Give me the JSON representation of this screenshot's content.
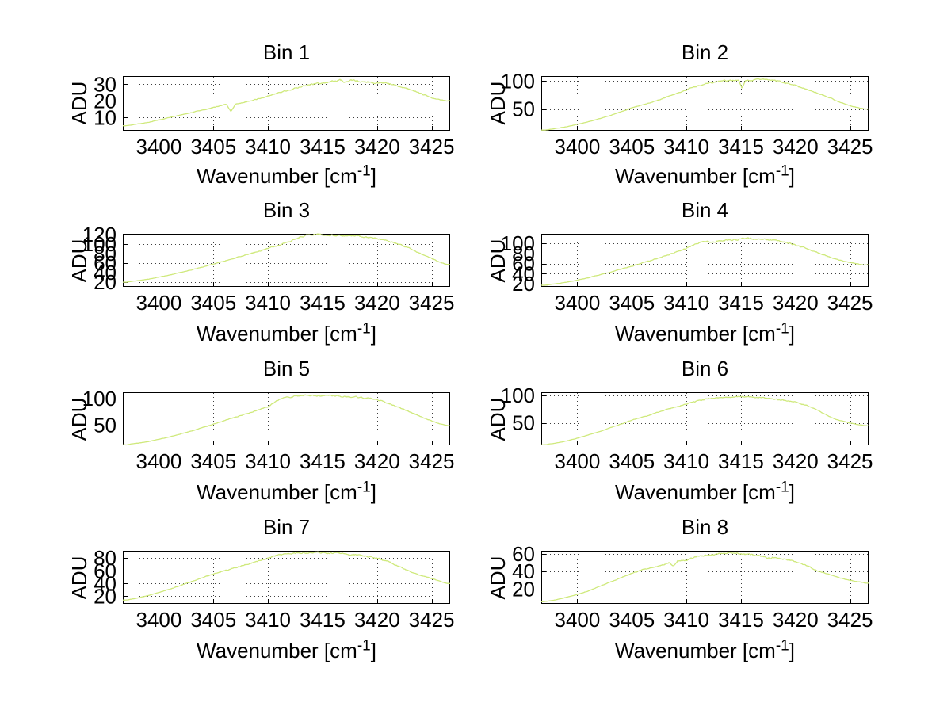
{
  "figure": {
    "background": "#ffffff",
    "line_color": "#cfe97c",
    "axis_color": "#000000",
    "grid_color": "#2a2a2a",
    "ylabel": "ADU",
    "xlabel": {
      "text": "Wavenumber [cm",
      "sup": "-1",
      "close": "]"
    },
    "xticks": [
      3400,
      3405,
      3410,
      3415,
      3420,
      3425
    ],
    "xlim": [
      3396.7,
      3426.7
    ]
  },
  "chart_data": [
    {
      "type": "line",
      "title": "Bin 1",
      "xlabel": "Wavenumber [cm^-1]",
      "ylabel": "ADU",
      "ylim": [
        2,
        35
      ],
      "yticks": [
        10,
        20,
        30
      ],
      "noise": 0.45,
      "seed": 1,
      "x": [
        3397,
        3399,
        3401,
        3403,
        3405,
        3406.2,
        3406.6,
        3407,
        3408,
        3409,
        3410,
        3411,
        3412,
        3413,
        3414,
        3415,
        3416,
        3416.6,
        3417,
        3417.4,
        3418,
        3419,
        3420,
        3421,
        3422,
        3423,
        3424,
        3425,
        3426,
        3426.5
      ],
      "y": [
        5,
        7,
        10,
        13,
        16,
        18,
        13.5,
        18,
        19.5,
        21,
        23,
        25,
        26.5,
        28.5,
        30,
        31,
        32,
        33,
        31.5,
        32.5,
        32,
        31.5,
        31,
        30.5,
        29,
        27,
        24.5,
        22,
        20.5,
        20
      ]
    },
    {
      "type": "line",
      "title": "Bin 2",
      "xlabel": "Wavenumber [cm^-1]",
      "ylabel": "ADU",
      "ylim": [
        11,
        109
      ],
      "yticks": [
        50,
        100
      ],
      "noise": 1.1,
      "seed": 2,
      "x": [
        3397,
        3399,
        3401,
        3403,
        3405,
        3407,
        3409,
        3410,
        3411,
        3412,
        3413,
        3414,
        3414.8,
        3415.1,
        3415.4,
        3416,
        3417,
        3418,
        3419,
        3420,
        3421,
        3422,
        3423,
        3424,
        3425,
        3426,
        3426.5
      ],
      "y": [
        12,
        18,
        27,
        38,
        52,
        63,
        77,
        84,
        91,
        96,
        100,
        101,
        102,
        87,
        101,
        102,
        103,
        101,
        97,
        92,
        86,
        79,
        71,
        63,
        56,
        51,
        50
      ]
    },
    {
      "type": "line",
      "title": "Bin 3",
      "xlabel": "Wavenumber [cm^-1]",
      "ylabel": "ADU",
      "ylim": [
        10,
        122
      ],
      "yticks": [
        20,
        40,
        60,
        80,
        100,
        120
      ],
      "noise": 1.2,
      "seed": 3,
      "x": [
        3397,
        3399,
        3401,
        3403,
        3405,
        3407,
        3409,
        3410,
        3411,
        3412,
        3413,
        3413.5,
        3414,
        3414.5,
        3415,
        3415.5,
        3416,
        3417,
        3418,
        3419,
        3420,
        3421,
        3422,
        3423,
        3424,
        3425,
        3426,
        3426.5
      ],
      "y": [
        20,
        26,
        35,
        46,
        58,
        71,
        84,
        91,
        98,
        106,
        116,
        118,
        120,
        121,
        120,
        118,
        119,
        118,
        117,
        115,
        112,
        107,
        100,
        91,
        80,
        70,
        60,
        57
      ]
    },
    {
      "type": "line",
      "title": "Bin 4",
      "xlabel": "Wavenumber [cm^-1]",
      "ylabel": "ADU",
      "ylim": [
        14,
        119
      ],
      "yticks": [
        20,
        40,
        60,
        80,
        100
      ],
      "noise": 1.4,
      "seed": 4,
      "x": [
        3397,
        3399,
        3401,
        3403,
        3405,
        3407,
        3408,
        3409,
        3410,
        3410.6,
        3411,
        3411.5,
        3412,
        3412.5,
        3413,
        3414,
        3415,
        3415.5,
        3416,
        3417,
        3417.5,
        3418,
        3418.5,
        3419,
        3419.5,
        3420,
        3421,
        3422,
        3423,
        3424,
        3425,
        3426,
        3426.5
      ],
      "y": [
        17,
        23,
        32,
        43,
        55,
        68,
        75,
        82,
        90,
        97,
        101,
        103,
        104,
        102,
        105,
        107,
        108,
        110,
        109,
        108,
        106,
        107,
        104,
        103,
        100,
        97,
        90,
        82,
        74,
        67,
        62,
        58,
        57
      ]
    },
    {
      "type": "line",
      "title": "Bin 5",
      "xlabel": "Wavenumber [cm^-1]",
      "ylabel": "ADU",
      "ylim": [
        12,
        112
      ],
      "yticks": [
        50,
        100
      ],
      "noise": 1.1,
      "seed": 5,
      "x": [
        3397,
        3399,
        3401,
        3403,
        3405,
        3407,
        3408,
        3409,
        3410,
        3410.5,
        3411,
        3411.5,
        3412,
        3413,
        3413.5,
        3414,
        3415,
        3415.5,
        3416,
        3417,
        3418,
        3419,
        3420,
        3420.5,
        3421,
        3422,
        3423,
        3424,
        3425,
        3426,
        3426.5
      ],
      "y": [
        13,
        19,
        28,
        39,
        52,
        65,
        71,
        78,
        85,
        92,
        98,
        101,
        103,
        105,
        107,
        106,
        105,
        107,
        105,
        104,
        103,
        101,
        98,
        95,
        91,
        84,
        75,
        66,
        58,
        51,
        49
      ]
    },
    {
      "type": "line",
      "title": "Bin 6",
      "xlabel": "Wavenumber [cm^-1]",
      "ylabel": "ADU",
      "ylim": [
        9,
        106
      ],
      "yticks": [
        50,
        100
      ],
      "noise": 0.9,
      "seed": 6,
      "x": [
        3397,
        3398,
        3399,
        3400,
        3401,
        3402,
        3403,
        3404,
        3405,
        3406,
        3406.5,
        3407,
        3408,
        3409,
        3410,
        3411,
        3412,
        3413,
        3414,
        3415,
        3416,
        3417,
        3418,
        3418.5,
        3419,
        3420,
        3420.5,
        3421,
        3421.5,
        3422,
        3422.5,
        3423,
        3423.5,
        3424,
        3425,
        3426,
        3426.5
      ],
      "y": [
        10,
        13,
        17,
        22,
        28,
        34,
        41,
        48,
        55,
        61,
        63,
        67,
        73,
        79,
        85,
        90,
        94,
        96,
        97,
        98,
        97,
        96,
        94,
        92,
        91,
        88,
        85,
        82,
        78,
        73,
        68,
        63,
        58,
        55,
        50,
        46,
        45
      ]
    },
    {
      "type": "line",
      "title": "Bin 7",
      "xlabel": "Wavenumber [cm^-1]",
      "ylabel": "ADU",
      "ylim": [
        8,
        91.5
      ],
      "yticks": [
        20,
        40,
        60,
        80
      ],
      "noise": 1.0,
      "seed": 7,
      "x": [
        3397,
        3398,
        3399,
        3399.6,
        3400,
        3401,
        3402,
        3403,
        3404,
        3405,
        3406,
        3407,
        3407.5,
        3408,
        3409,
        3410,
        3410.5,
        3411,
        3412,
        3413,
        3414,
        3414.5,
        3415,
        3416,
        3417,
        3418,
        3419,
        3420,
        3421,
        3421.5,
        3422,
        3422.5,
        3423,
        3424,
        3425,
        3426,
        3426.5
      ],
      "y": [
        14,
        17,
        21,
        24,
        26,
        31,
        37,
        43,
        49,
        55,
        60,
        65,
        67,
        70,
        75,
        80,
        83,
        85,
        87,
        88,
        89,
        90,
        89,
        88,
        87,
        85,
        83,
        80,
        75,
        71,
        67,
        63,
        59,
        53,
        48,
        42,
        40
      ]
    },
    {
      "type": "line",
      "title": "Bin 8",
      "xlabel": "Wavenumber [cm^-1]",
      "ylabel": "ADU",
      "ylim": [
        3.5,
        63.5
      ],
      "yticks": [
        20,
        40,
        60
      ],
      "noise": 0.7,
      "seed": 8,
      "x": [
        3397,
        3398,
        3399,
        3400,
        3401,
        3402,
        3403,
        3404,
        3405,
        3405.5,
        3406,
        3407,
        3408,
        3408.4,
        3408.8,
        3409.2,
        3410,
        3410.5,
        3411,
        3412,
        3413,
        3414,
        3415,
        3416,
        3417,
        3417.5,
        3418,
        3419,
        3420,
        3421,
        3421.5,
        3422,
        3423,
        3424,
        3425,
        3426,
        3426.5
      ],
      "y": [
        6,
        8,
        11,
        14,
        18,
        23,
        28,
        33,
        38,
        40,
        42,
        45,
        48,
        50,
        46,
        52,
        53,
        55,
        57,
        59,
        60,
        61,
        60,
        59,
        57,
        55,
        56,
        54,
        51,
        47,
        44,
        41,
        37,
        33,
        30,
        28,
        27
      ]
    }
  ]
}
